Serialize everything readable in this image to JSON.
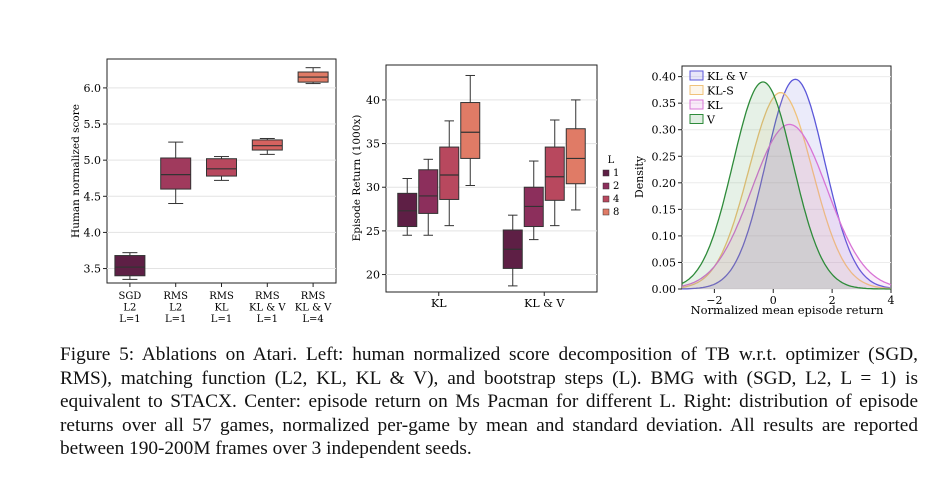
{
  "caption": "Figure 5: Ablations on Atari. Left: human normalized score decomposition of TB w.r.t. optimizer (SGD, RMS), matching function (L2, KL, KL & V), and bootstrap steps (L). BMG with (SGD, L2, L = 1) is equivalent to STACX. Center: episode return on Ms Pacman for different L. Right: distribution of episode returns over all 57 games, normalized per-game by mean and standard deviation. All results are reported between 190-200M frames over 3 independent seeds.",
  "chart_data": [
    {
      "type": "box",
      "ylabel": "Human normalized score",
      "yticks": [
        "3.5",
        "4.0",
        "4.5",
        "5.0",
        "5.5",
        "6.0"
      ],
      "ylim": [
        3.3,
        6.4
      ],
      "categories": [
        {
          "lines": [
            "SGD",
            "L2",
            "L=1"
          ]
        },
        {
          "lines": [
            "RMS",
            "L2",
            "L=1"
          ]
        },
        {
          "lines": [
            "RMS",
            "KL",
            "L=1"
          ]
        },
        {
          "lines": [
            "RMS",
            "KL & V",
            "L=1"
          ]
        },
        {
          "lines": [
            "RMS",
            "KL & V",
            "L=4"
          ]
        }
      ],
      "boxes": [
        {
          "min": 3.35,
          "q1": 3.4,
          "median": 3.52,
          "q3": 3.68,
          "max": 3.72,
          "color": "#5e1f45"
        },
        {
          "min": 4.4,
          "q1": 4.6,
          "median": 4.8,
          "q3": 5.03,
          "max": 5.25,
          "color": "#a03a5d"
        },
        {
          "min": 4.72,
          "q1": 4.78,
          "median": 4.88,
          "q3": 5.02,
          "max": 5.05,
          "color": "#b8485e"
        },
        {
          "min": 5.08,
          "q1": 5.14,
          "median": 5.2,
          "q3": 5.28,
          "max": 5.3,
          "color": "#d5625f"
        },
        {
          "min": 6.06,
          "q1": 6.08,
          "median": 6.15,
          "q3": 6.22,
          "max": 6.28,
          "color": "#e07b66"
        }
      ]
    },
    {
      "type": "box",
      "ylabel": "Episode Return (1000x)",
      "yticks": [
        "20",
        "25",
        "30",
        "35",
        "40"
      ],
      "ylim": [
        18,
        44
      ],
      "categories": [
        "KL",
        "KL & V"
      ],
      "legend": {
        "title": "L",
        "labels": [
          "1",
          "2",
          "4",
          "8"
        ],
        "placement": "right"
      },
      "series_colors": [
        "#5e1f45",
        "#8c2f5c",
        "#b8485e",
        "#e07b66"
      ],
      "boxes": [
        [
          {
            "min": 24.5,
            "q1": 25.5,
            "median": 27.3,
            "q3": 29.3,
            "max": 31.0
          },
          {
            "min": 24.5,
            "q1": 27.0,
            "median": 29.0,
            "q3": 32.0,
            "max": 33.2
          },
          {
            "min": 25.6,
            "q1": 28.6,
            "median": 31.4,
            "q3": 34.6,
            "max": 37.6
          },
          {
            "min": 30.2,
            "q1": 33.3,
            "median": 36.3,
            "q3": 39.7,
            "max": 42.8
          }
        ],
        [
          {
            "min": 18.7,
            "q1": 20.7,
            "median": 22.9,
            "q3": 25.1,
            "max": 26.8
          },
          {
            "min": 24.0,
            "q1": 25.5,
            "median": 27.8,
            "q3": 30.0,
            "max": 33.0
          },
          {
            "min": 25.6,
            "q1": 28.5,
            "median": 31.2,
            "q3": 34.6,
            "max": 37.7
          },
          {
            "min": 27.4,
            "q1": 30.4,
            "median": 33.3,
            "q3": 36.7,
            "max": 40.0
          }
        ]
      ]
    },
    {
      "type": "density",
      "ylabel": "Density",
      "xlabel": "Normalized mean episode return",
      "xticks": [
        "−2",
        "0",
        "2",
        "4"
      ],
      "yticks": [
        "0.00",
        "0.05",
        "0.10",
        "0.15",
        "0.20",
        "0.25",
        "0.30",
        "0.35",
        "0.40"
      ],
      "xlim": [
        -3.1,
        4.0
      ],
      "ylim": [
        0,
        0.42
      ],
      "legend_placement": "top-left",
      "series": [
        {
          "name": "KL & V",
          "mean": 0.75,
          "sd": 1.0,
          "peak": 0.395,
          "color": "#5b57d9"
        },
        {
          "name": "KL-S",
          "mean": 0.25,
          "sd": 1.08,
          "peak": 0.37,
          "color": "#f0c27a"
        },
        {
          "name": "KL",
          "mean": 0.55,
          "sd": 1.28,
          "peak": 0.31,
          "color": "#d874d6"
        },
        {
          "name": "V",
          "mean": -0.35,
          "sd": 1.02,
          "peak": 0.39,
          "color": "#2e8b3a"
        }
      ]
    }
  ]
}
